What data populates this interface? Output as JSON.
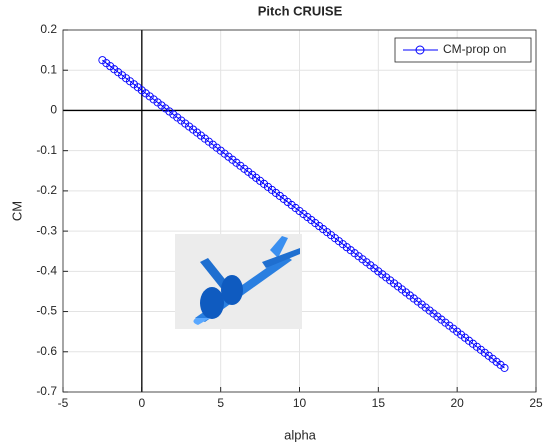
{
  "chart_data": {
    "type": "line",
    "title": "Pitch CRUISE",
    "x_label": "alpha",
    "y_label": "CM",
    "x": [
      -2.5,
      -2.25,
      -2,
      -1.75,
      -1.5,
      -1.25,
      -1,
      -0.75,
      -0.5,
      -0.25,
      0,
      0.25,
      0.5,
      0.75,
      1,
      1.25,
      1.5,
      1.75,
      2,
      2.25,
      2.5,
      2.75,
      3,
      3.25,
      3.5,
      3.75,
      4,
      4.25,
      4.5,
      4.75,
      5,
      5.25,
      5.5,
      5.75,
      6,
      6.25,
      6.5,
      6.75,
      7,
      7.25,
      7.5,
      7.75,
      8,
      8.25,
      8.5,
      8.75,
      9,
      9.25,
      9.5,
      9.75,
      10,
      10.25,
      10.5,
      10.75,
      11,
      11.25,
      11.5,
      11.75,
      12,
      12.25,
      12.5,
      12.75,
      13,
      13.25,
      13.5,
      13.75,
      14,
      14.25,
      14.5,
      14.75,
      15,
      15.25,
      15.5,
      15.75,
      16,
      16.25,
      16.5,
      16.75,
      17,
      17.25,
      17.5,
      17.75,
      18,
      18.25,
      18.5,
      18.75,
      19,
      19.25,
      19.5,
      19.75,
      20,
      20.25,
      20.5,
      20.75,
      21,
      21.25,
      21.5,
      21.75,
      22,
      22.25,
      22.5,
      22.75,
      23
    ],
    "series": [
      {
        "name": "CM-prop on",
        "color": "#0000ff",
        "marker": "circle",
        "values": [
          0.125,
          0.1175,
          0.11,
          0.1025,
          0.095,
          0.0875,
          0.08,
          0.0725,
          0.065,
          0.0575,
          0.05,
          0.0425,
          0.035,
          0.0275,
          0.02,
          0.0125,
          0.005,
          -0.0025,
          -0.01,
          -0.0175,
          -0.025,
          -0.0325,
          -0.04,
          -0.0475,
          -0.055,
          -0.0625,
          -0.07,
          -0.0775,
          -0.085,
          -0.0925,
          -0.1,
          -0.1075,
          -0.115,
          -0.1225,
          -0.13,
          -0.1375,
          -0.145,
          -0.1525,
          -0.16,
          -0.1675,
          -0.175,
          -0.1825,
          -0.19,
          -0.1975,
          -0.205,
          -0.2125,
          -0.22,
          -0.2275,
          -0.235,
          -0.2425,
          -0.25,
          -0.2575,
          -0.265,
          -0.2725,
          -0.28,
          -0.2875,
          -0.295,
          -0.3025,
          -0.31,
          -0.3175,
          -0.325,
          -0.3325,
          -0.34,
          -0.3475,
          -0.355,
          -0.3625,
          -0.37,
          -0.3775,
          -0.385,
          -0.3925,
          -0.4,
          -0.4075,
          -0.415,
          -0.4225,
          -0.43,
          -0.4375,
          -0.445,
          -0.4525,
          -0.46,
          -0.4675,
          -0.475,
          -0.4825,
          -0.49,
          -0.4975,
          -0.505,
          -0.5125,
          -0.52,
          -0.5275,
          -0.535,
          -0.5425,
          -0.55,
          -0.5575,
          -0.565,
          -0.5725,
          -0.58,
          -0.5875,
          -0.595,
          -0.6025,
          -0.61,
          -0.6175,
          -0.625,
          -0.6325,
          -0.64
        ]
      }
    ],
    "xlim": [
      -5,
      25
    ],
    "ylim": [
      -0.7,
      0.2
    ],
    "xticks": [
      -5,
      0,
      5,
      10,
      15,
      20,
      25
    ],
    "yticks": [
      -0.7,
      -0.6,
      -0.5,
      -0.4,
      -0.3,
      -0.2,
      -0.1,
      0,
      0.1,
      0.2
    ],
    "grid": true,
    "legend": "top-right"
  }
}
